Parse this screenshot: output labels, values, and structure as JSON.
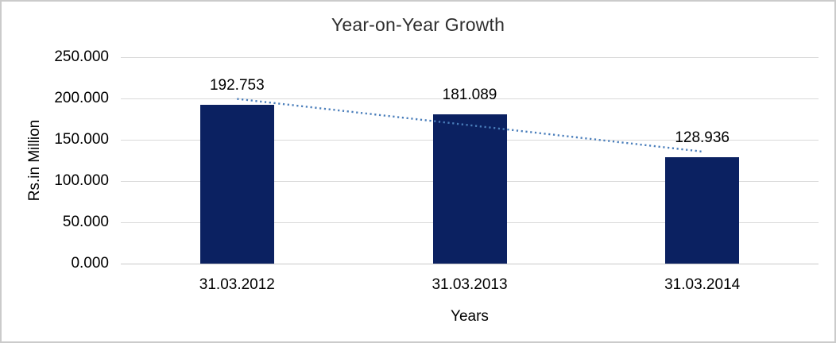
{
  "chart_data": {
    "type": "bar",
    "title": "Year-on-Year Growth",
    "categories": [
      "31.03.2012",
      "31.03.2013",
      "31.03.2014"
    ],
    "values": [
      192.753,
      181.089,
      128.936
    ],
    "value_labels": [
      "192.753",
      "181.089",
      "128.936"
    ],
    "xlabel": "Years",
    "ylabel": "Rs.in Million",
    "ylim": [
      0,
      250
    ],
    "yticks": [
      "250.000",
      "200.000",
      "150.000",
      "100.000",
      "50.000",
      "0.000"
    ],
    "grid": "horizontal",
    "legend": "none",
    "bar_color": "#0b2161",
    "trendline": {
      "type": "linear",
      "style": "dotted",
      "color": "#4a7ebb"
    },
    "gridline_color": "#d9d9d9",
    "axis_line_color": "#c9c9c9",
    "background_color": "#ffffff",
    "border_color": "#cbcbcb"
  }
}
